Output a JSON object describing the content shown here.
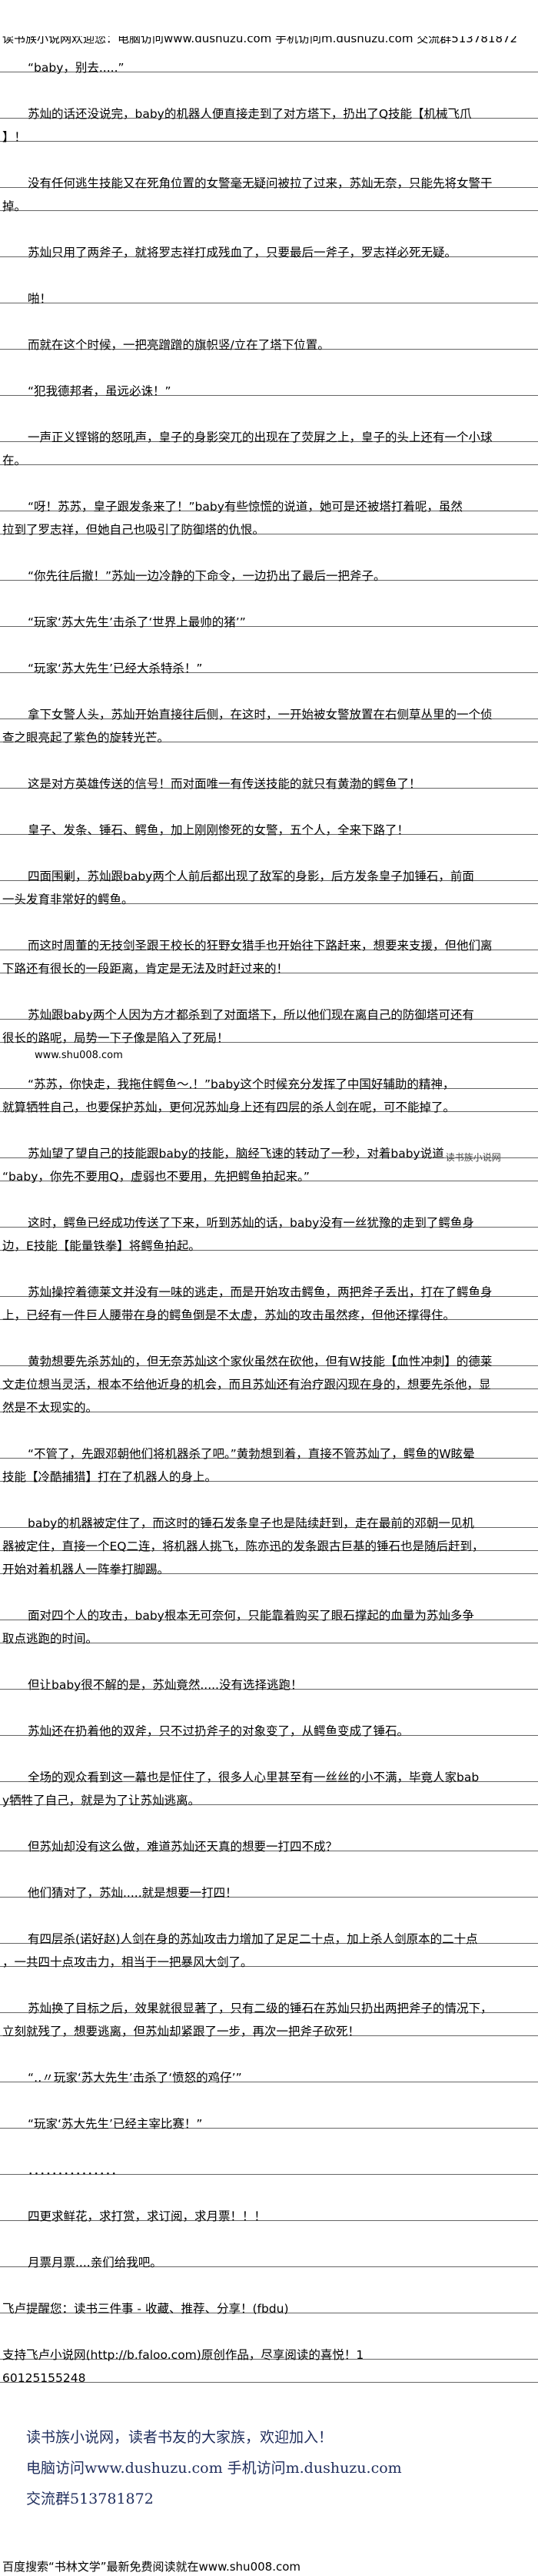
{
  "header": {
    "banner": "读书族小说网欢迎您：电脑访问www.dushuzu.com 手机访问m.dushuzu.com 交流群513781872"
  },
  "article": {
    "paragraphs": [
      {
        "indent": true,
        "lines": [
          "“baby，别去.....”"
        ]
      },
      {
        "indent": true,
        "lines": [
          "苏灿的话还没说完，baby的机器人便直接走到了对方塔下，扔出了Q技能【机械飞爪",
          "】！"
        ]
      },
      {
        "indent": true,
        "lines": [
          "没有任何逃生技能又在死角位置的女警毫无疑问被拉了过来，苏灿无奈，只能先将女警干",
          "掉。"
        ]
      },
      {
        "indent": true,
        "lines": [
          "苏灿只用了两斧子，就将罗志祥打成残血了，只要最后一斧子，罗志祥必死无疑。"
        ]
      },
      {
        "indent": true,
        "lines": [
          "啪！"
        ]
      },
      {
        "indent": true,
        "lines": [
          "而就在这个时候，一把亮蹭蹭的旗帜竖/立在了塔下位置。"
        ]
      },
      {
        "indent": true,
        "lines": [
          "“犯我德邦者，虽远必诛！”"
        ]
      },
      {
        "indent": true,
        "lines": [
          "一声正义铿锵的怒吼声，皇子的身影突兀的出现在了荧屏之上，皇子的头上还有一个小球",
          "在。"
        ]
      },
      {
        "indent": true,
        "lines": [
          "“呀！苏苏，皇子跟发条来了！”baby有些惊慌的说道，她可是还被塔打着呢，虽然",
          "拉到了罗志祥，但她自己也吸引了防御塔的仇恨。"
        ]
      },
      {
        "indent": true,
        "lines": [
          "“你先往后撤！”苏灿一边冷静的下命令，一边扔出了最后一把斧子。"
        ]
      },
      {
        "indent": true,
        "lines": [
          "“玩家‘苏大先生’击杀了‘世界上最帅的猪’”"
        ]
      },
      {
        "indent": true,
        "lines": [
          "“玩家‘苏大先生’已经大杀特杀！”"
        ]
      },
      {
        "indent": true,
        "lines": [
          "拿下女警人头，苏灿开始直接往后侧，在这时，一开始被女警放置在右侧草丛里的一个侦",
          "查之眼亮起了紫色的旋转光芒。"
        ]
      },
      {
        "indent": true,
        "lines": [
          "这是对方英雄传送的信号！而对面唯一有传送技能的就只有黄渤的鳄鱼了！"
        ]
      },
      {
        "indent": true,
        "lines": [
          "皇子、发条、锤石、鳄鱼，加上刚刚惨死的女警，五个人，全来下路了！"
        ]
      },
      {
        "indent": true,
        "lines": [
          "四面围剿，苏灿跟baby两个人前后都出现了敌军的身影，后方发条皇子加锤石，前面",
          "一头发育非常好的鳄鱼。"
        ]
      },
      {
        "indent": true,
        "lines": [
          "而这时周董的无技剑圣跟王校长的狂野女猎手也开始往下路赶来，想要来支援，但他们离",
          "下路还有很长的一段距离，肯定是无法及时赶过来的！"
        ]
      },
      {
        "indent": true,
        "lines": [
          "苏灿跟baby两个人因为方才都杀到了对面塔下，所以他们现在离自己的防御塔可还有",
          "很长的路呢，局势一下子像是陷入了死局！"
        ]
      },
      {
        "indent": true,
        "insert": "www.shu008.com",
        "lines": [
          "“苏苏，你快走，我拖住鳄鱼～.！”baby这个时候充分发挥了中国好辅助的精神，",
          "就算牺牲自己，也要保护苏灿，更何况苏灿身上还有四层的杀人剑在呢，可不能掉了。"
        ]
      },
      {
        "indent": true,
        "watermark": "读书族小说网",
        "lines": [
          "苏灿望了望自己的技能跟baby的技能，脑经飞速的转动了一秒，对着baby说道",
          "“baby，你先不要用Q，虚弱也不要用，先把鳄鱼拍起来。”"
        ]
      },
      {
        "indent": true,
        "lines": [
          "这时，鳄鱼已经成功传送了下来，听到苏灿的话，baby没有一丝犹豫的走到了鳄鱼身",
          "边，E技能【能量铁拳】将鳄鱼拍起。"
        ]
      },
      {
        "indent": true,
        "lines": [
          "苏灿操控着德莱文并没有一味的逃走，而是开始攻击鳄鱼，两把斧子丢出，打在了鳄鱼身",
          "上，已经有一件巨人腰带在身的鳄鱼倒是不太虚，苏灿的攻击虽然疼，但他还撑得住。"
        ]
      },
      {
        "indent": true,
        "lines": [
          "黄勃想要先杀苏灿的，但无奈苏灿这个家伙虽然在砍他，但有W技能【血性冲刺】的德莱",
          "文走位想当灵活，根本不给他近身的机会，而且苏灿还有治疗跟闪现在身的，想要先杀他，显",
          "然是不太现实的。"
        ]
      },
      {
        "indent": true,
        "lines": [
          "“不管了，先跟邓朝他们将机器杀了吧。”黄勃想到着，直接不管苏灿了，鳄鱼的W眩晕",
          "技能【冷酷捕猎】打在了机器人的身上。"
        ]
      },
      {
        "indent": true,
        "lines": [
          "baby的机器被定住了，而这时的锤石发条皇子也是陆续赶到，走在最前的邓朝一见机",
          "器被定住，直接一个EQ二连，将机器人挑飞，陈亦迅的发条跟古巨基的锤石也是随后赶到，",
          "开始对着机器人一阵拳打脚踢。"
        ]
      },
      {
        "indent": true,
        "lines": [
          "面对四个人的攻击，baby根本无可奈何，只能靠着购买了眼石撑起的血量为苏灿多争",
          "取点逃跑的时间。"
        ]
      },
      {
        "indent": true,
        "lines": [
          "但让baby很不解的是，苏灿竟然.....没有选择逃跑！"
        ]
      },
      {
        "indent": true,
        "lines": [
          "苏灿还在扔着他的双斧，只不过扔斧子的对象变了，从鳄鱼变成了锤石。"
        ]
      },
      {
        "indent": true,
        "lines": [
          "全场的观众看到这一幕也是怔住了，很多人心里甚至有一丝丝的小不满，毕竟人家bab",
          "y牺牲了自己，就是为了让苏灿逃离。"
        ]
      },
      {
        "indent": true,
        "lines": [
          "但苏灿却没有这么做，难道苏灿还天真的想要一打四不成？"
        ]
      },
      {
        "indent": true,
        "lines": [
          "他们猜对了，苏灿.....就是想要一打四！"
        ]
      },
      {
        "indent": true,
        "lines": [
          "有四层杀(诺好赵)人剑在身的苏灿攻击力增加了足足二十点，加上杀人剑原本的二十点",
          "，一共四十点攻击力，相当于一把暴风大剑了。"
        ]
      },
      {
        "indent": true,
        "lines": [
          "苏灿换了目标之后，效果就很显著了，只有二级的锤石在苏灿只扔出两把斧子的情况下，",
          "立刻就残了，想要逃离，但苏灿却紧跟了一步，再次一把斧子砍死！"
        ]
      },
      {
        "indent": true,
        "lines": [
          "“‥〃玩家‘苏大先生’击杀了‘愤怒的鸡仔’”"
        ]
      },
      {
        "indent": true,
        "lines": [
          "“玩家‘苏大先生’已经主宰比赛！”"
        ]
      },
      {
        "indent": true,
        "lines": [
          "．．．．．．．．．．．．．．．"
        ]
      },
      {
        "indent": true,
        "lines": [
          "四更求鲜花，求打赏，求订阅，求月票！！！"
        ]
      },
      {
        "indent": true,
        "lines": [
          "月票月票....亲们给我吧。"
        ]
      },
      {
        "indent": false,
        "lines": [
          "飞卢提醒您：读书三件事 - 收藏、推荐、分享！(fbdu)"
        ]
      },
      {
        "indent": false,
        "lines": [
          "支持飞卢小说网(http://b.faloo.com)原创作品，尽享阅读的喜悦！1",
          "60125155248"
        ]
      }
    ]
  },
  "footer": {
    "line1": "读书族小说网，读者书友的大家族，欢迎加入！",
    "line2": "电脑访问www.dushuzu.com 手机访问m.dushuzu.com",
    "line3": "交流群513781872",
    "color": "#1f2d5c"
  },
  "bottom": {
    "search_note": "百度搜索“书林文学”最新免费阅读就在www.shu008.com"
  }
}
